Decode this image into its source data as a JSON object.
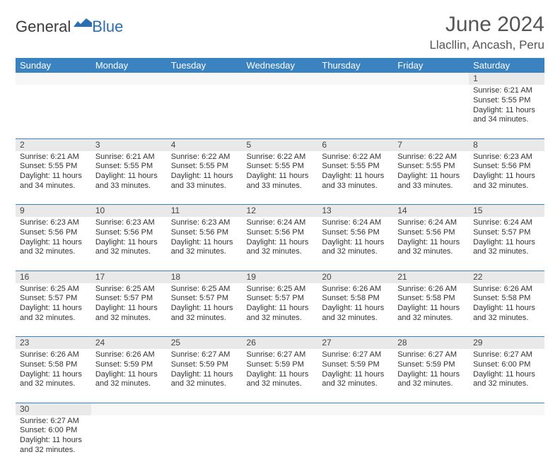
{
  "brand": {
    "general": "General",
    "blue": "Blue"
  },
  "title": "June 2024",
  "location": "Llacllin, Ancash, Peru",
  "colors": {
    "header_bg": "#3b83c0",
    "header_text": "#ffffff",
    "daynum_bg": "#e9e9e9",
    "empty_bg": "#f7f7f7",
    "rule": "#3b83c0",
    "body_text": "#333333",
    "title_text": "#555555"
  },
  "columns": [
    "Sunday",
    "Monday",
    "Tuesday",
    "Wednesday",
    "Thursday",
    "Friday",
    "Saturday"
  ],
  "weeks": [
    [
      null,
      null,
      null,
      null,
      null,
      null,
      {
        "n": "1",
        "sr": "6:21 AM",
        "ss": "5:55 PM",
        "dl": "11 hours and 34 minutes."
      }
    ],
    [
      {
        "n": "2",
        "sr": "6:21 AM",
        "ss": "5:55 PM",
        "dl": "11 hours and 34 minutes."
      },
      {
        "n": "3",
        "sr": "6:21 AM",
        "ss": "5:55 PM",
        "dl": "11 hours and 33 minutes."
      },
      {
        "n": "4",
        "sr": "6:22 AM",
        "ss": "5:55 PM",
        "dl": "11 hours and 33 minutes."
      },
      {
        "n": "5",
        "sr": "6:22 AM",
        "ss": "5:55 PM",
        "dl": "11 hours and 33 minutes."
      },
      {
        "n": "6",
        "sr": "6:22 AM",
        "ss": "5:55 PM",
        "dl": "11 hours and 33 minutes."
      },
      {
        "n": "7",
        "sr": "6:22 AM",
        "ss": "5:55 PM",
        "dl": "11 hours and 33 minutes."
      },
      {
        "n": "8",
        "sr": "6:23 AM",
        "ss": "5:56 PM",
        "dl": "11 hours and 32 minutes."
      }
    ],
    [
      {
        "n": "9",
        "sr": "6:23 AM",
        "ss": "5:56 PM",
        "dl": "11 hours and 32 minutes."
      },
      {
        "n": "10",
        "sr": "6:23 AM",
        "ss": "5:56 PM",
        "dl": "11 hours and 32 minutes."
      },
      {
        "n": "11",
        "sr": "6:23 AM",
        "ss": "5:56 PM",
        "dl": "11 hours and 32 minutes."
      },
      {
        "n": "12",
        "sr": "6:24 AM",
        "ss": "5:56 PM",
        "dl": "11 hours and 32 minutes."
      },
      {
        "n": "13",
        "sr": "6:24 AM",
        "ss": "5:56 PM",
        "dl": "11 hours and 32 minutes."
      },
      {
        "n": "14",
        "sr": "6:24 AM",
        "ss": "5:56 PM",
        "dl": "11 hours and 32 minutes."
      },
      {
        "n": "15",
        "sr": "6:24 AM",
        "ss": "5:57 PM",
        "dl": "11 hours and 32 minutes."
      }
    ],
    [
      {
        "n": "16",
        "sr": "6:25 AM",
        "ss": "5:57 PM",
        "dl": "11 hours and 32 minutes."
      },
      {
        "n": "17",
        "sr": "6:25 AM",
        "ss": "5:57 PM",
        "dl": "11 hours and 32 minutes."
      },
      {
        "n": "18",
        "sr": "6:25 AM",
        "ss": "5:57 PM",
        "dl": "11 hours and 32 minutes."
      },
      {
        "n": "19",
        "sr": "6:25 AM",
        "ss": "5:57 PM",
        "dl": "11 hours and 32 minutes."
      },
      {
        "n": "20",
        "sr": "6:26 AM",
        "ss": "5:58 PM",
        "dl": "11 hours and 32 minutes."
      },
      {
        "n": "21",
        "sr": "6:26 AM",
        "ss": "5:58 PM",
        "dl": "11 hours and 32 minutes."
      },
      {
        "n": "22",
        "sr": "6:26 AM",
        "ss": "5:58 PM",
        "dl": "11 hours and 32 minutes."
      }
    ],
    [
      {
        "n": "23",
        "sr": "6:26 AM",
        "ss": "5:58 PM",
        "dl": "11 hours and 32 minutes."
      },
      {
        "n": "24",
        "sr": "6:26 AM",
        "ss": "5:59 PM",
        "dl": "11 hours and 32 minutes."
      },
      {
        "n": "25",
        "sr": "6:27 AM",
        "ss": "5:59 PM",
        "dl": "11 hours and 32 minutes."
      },
      {
        "n": "26",
        "sr": "6:27 AM",
        "ss": "5:59 PM",
        "dl": "11 hours and 32 minutes."
      },
      {
        "n": "27",
        "sr": "6:27 AM",
        "ss": "5:59 PM",
        "dl": "11 hours and 32 minutes."
      },
      {
        "n": "28",
        "sr": "6:27 AM",
        "ss": "5:59 PM",
        "dl": "11 hours and 32 minutes."
      },
      {
        "n": "29",
        "sr": "6:27 AM",
        "ss": "6:00 PM",
        "dl": "11 hours and 32 minutes."
      }
    ],
    [
      {
        "n": "30",
        "sr": "6:27 AM",
        "ss": "6:00 PM",
        "dl": "11 hours and 32 minutes."
      },
      null,
      null,
      null,
      null,
      null,
      null
    ]
  ],
  "labels": {
    "sunrise": "Sunrise:",
    "sunset": "Sunset:",
    "daylight": "Daylight:"
  }
}
